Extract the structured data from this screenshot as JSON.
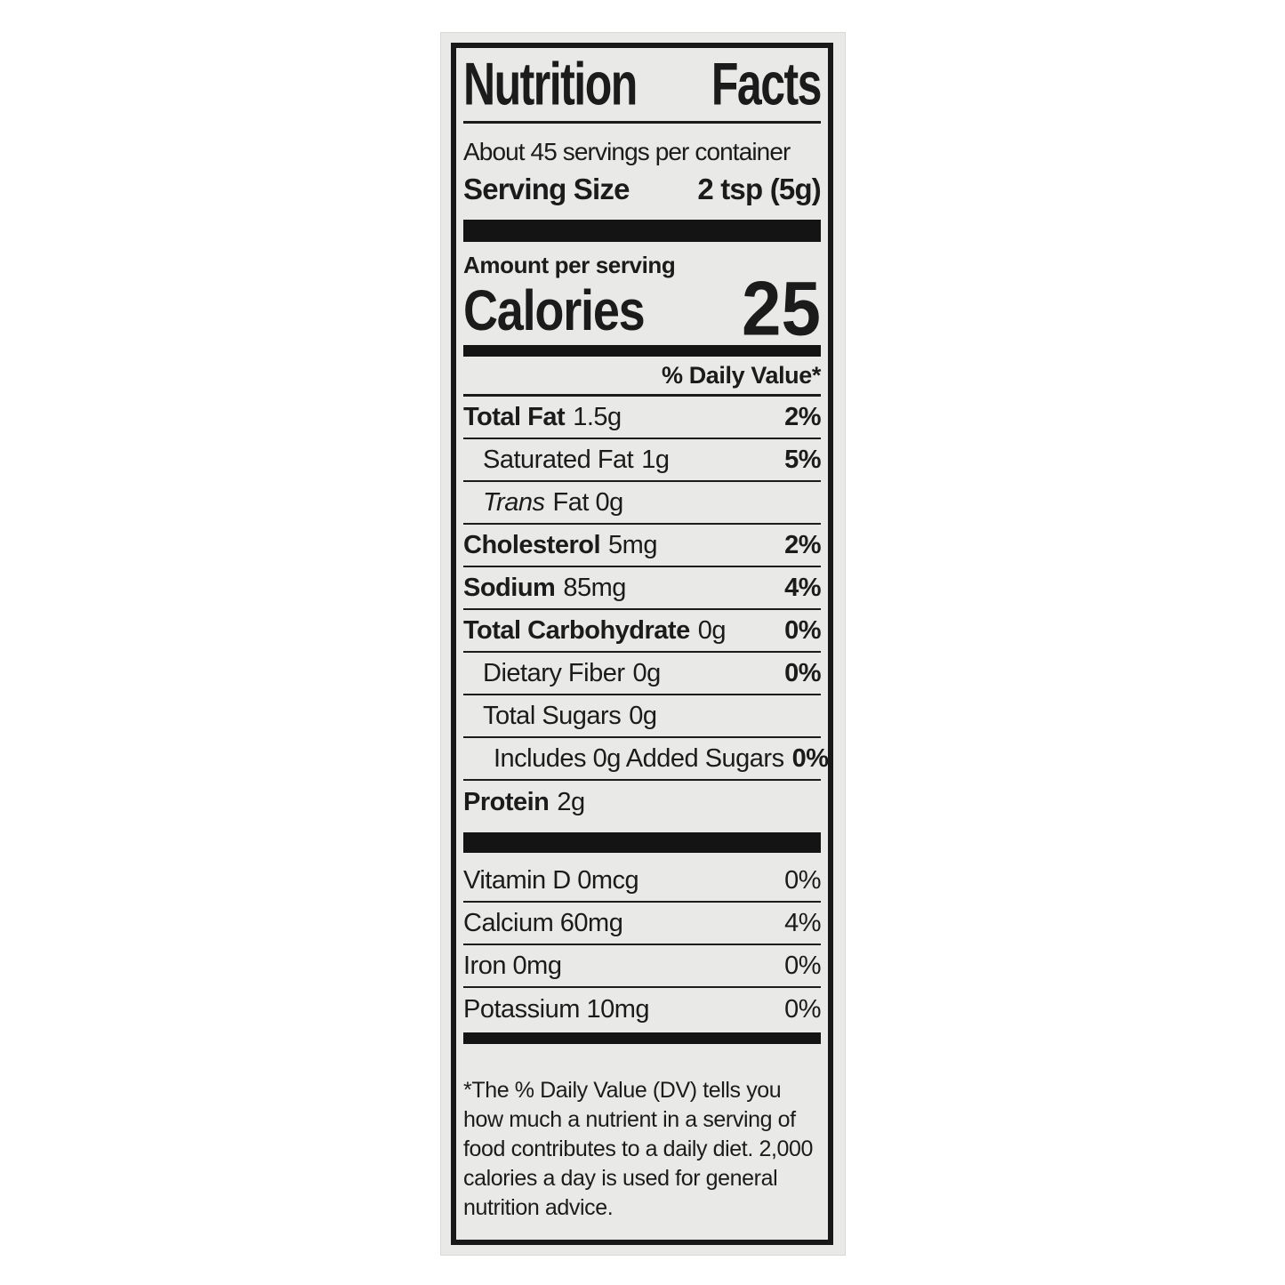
{
  "label": {
    "title": "Nutrition Facts",
    "servings_per_container": "About 45 servings per container",
    "serving_size_label": "Serving Size",
    "serving_size_value": "2 tsp (5g)",
    "amount_per_serving": "Amount per serving",
    "calories_label": "Calories",
    "calories_value": "25",
    "daily_value_header": "% Daily Value*",
    "nutrients": [
      {
        "name": "Total Fat",
        "amount": "1.5g",
        "dv": "2%"
      },
      {
        "name": "Saturated Fat",
        "amount": "1g",
        "dv": "5%"
      },
      {
        "name": "Trans",
        "amount": "Fat 0g",
        "dv": ""
      },
      {
        "name": "Cholesterol",
        "amount": "5mg",
        "dv": "2%"
      },
      {
        "name": "Sodium",
        "amount": "85mg",
        "dv": "4%"
      },
      {
        "name": "Total Carbohydrate",
        "amount": "0g",
        "dv": "0%"
      },
      {
        "name": "Dietary Fiber",
        "amount": "0g",
        "dv": "0%"
      },
      {
        "name": "Total Sugars",
        "amount": "0g",
        "dv": ""
      },
      {
        "name": "Includes 0g Added Sugars",
        "amount": "",
        "dv": "0%"
      },
      {
        "name": "Protein",
        "amount": "2g",
        "dv": ""
      }
    ],
    "micronutrients": [
      {
        "name": "Vitamin D 0mcg",
        "dv": "0%"
      },
      {
        "name": "Calcium 60mg",
        "dv": "4%"
      },
      {
        "name": "Iron 0mg",
        "dv": "0%"
      },
      {
        "name": "Potassium 10mg",
        "dv": "0%"
      }
    ],
    "footnote": "*The % Daily Value (DV) tells you how much a nutrient in a serving of food contributes to a daily diet. 2,000 calories a day is used for general nutrition advice."
  },
  "colors": {
    "label_background": "#e9eae7",
    "ink": "#1b1b1b",
    "page_background": "#ffffff"
  }
}
